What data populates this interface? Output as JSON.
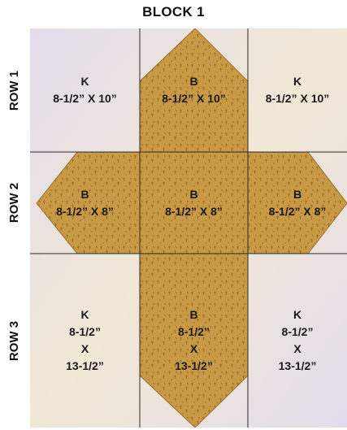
{
  "title": "BLOCK 1",
  "row_labels": [
    "ROW 1",
    "ROW 2",
    "ROW 3"
  ],
  "colors": {
    "background_fabric": "#e4dcec",
    "background_fabric_accent": "#f1e8d6",
    "cross_fabric": "#c99a46",
    "cross_fabric_dark": "#9c7028",
    "grid_line": "#2a2a2a"
  },
  "cells": {
    "r1c1": {
      "code": "K",
      "size": "8-1/2” X 10”"
    },
    "r1c2": {
      "code": "B",
      "size": "8-1/2” X 10”"
    },
    "r1c3": {
      "code": "K",
      "size": "8-1/2” X 10”"
    },
    "r2c1": {
      "code": "B",
      "size": "8-1/2” X 8”"
    },
    "r2c2": {
      "code": "B",
      "size": "8-1/2” X 8”"
    },
    "r2c3": {
      "code": "B",
      "size": "8-1/2” X 8”"
    },
    "r3c1": {
      "code": "K",
      "line1": "8-1/2”",
      "line2": "X",
      "line3": "13-1/2”"
    },
    "r3c2": {
      "code": "B",
      "line1": "8-1/2”",
      "line2": "X",
      "line3": "13-1/2”"
    },
    "r3c3": {
      "code": "K",
      "line1": "8-1/2”",
      "line2": "X",
      "line3": "13-1/2”"
    }
  }
}
